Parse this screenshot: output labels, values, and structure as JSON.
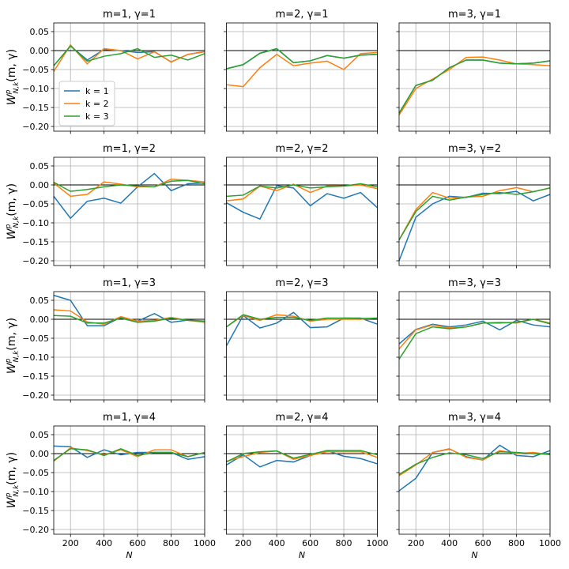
{
  "chart_data": [
    {
      "type": "line",
      "title": "m=1, γ=1",
      "ylabel": {
        "base": "W",
        "sup": "p",
        "sub": "N,k",
        "arg": "(m, γ)"
      },
      "legend": "lower left",
      "grid": true,
      "hline": 0,
      "x": [
        100,
        200,
        300,
        400,
        500,
        600,
        700,
        800,
        900,
        1000
      ],
      "xlim": [
        100,
        1000
      ],
      "xticks": [
        200,
        400,
        600,
        800,
        1000
      ],
      "ylim": [
        -0.2125,
        0.0729
      ],
      "yticks": [
        {
          "value": 0.05,
          "label": "0.05"
        },
        {
          "value": 0,
          "label": "0.00"
        },
        {
          "value": -0.05,
          "label": "−0.05"
        },
        {
          "value": -0.1,
          "label": "−0.10"
        },
        {
          "value": -0.15,
          "label": "−0.15"
        },
        {
          "value": -0.2,
          "label": "−0.20"
        }
      ],
      "series": [
        {
          "name": "k = 1",
          "color": "#1f77b4",
          "values": [
            -0.04,
            0.012,
            -0.025,
            0.003,
            0.0,
            -0.005,
            -0.003,
            -0.03,
            -0.01,
            -0.003
          ]
        },
        {
          "name": "k = 2",
          "color": "#ff7f0e",
          "values": [
            -0.055,
            0.015,
            -0.035,
            0.005,
            0.0,
            -0.022,
            -0.003,
            -0.03,
            -0.01,
            -0.003
          ]
        },
        {
          "name": "k = 3",
          "color": "#2ca02c",
          "values": [
            -0.04,
            0.012,
            -0.028,
            -0.015,
            -0.008,
            0.005,
            -0.018,
            -0.012,
            -0.025,
            -0.008
          ]
        }
      ]
    },
    {
      "type": "line",
      "title": "m=2, γ=1",
      "grid": true,
      "hline": 0,
      "x": [
        100,
        200,
        300,
        400,
        500,
        600,
        700,
        800,
        900,
        1000
      ],
      "xlim": [
        100,
        1000
      ],
      "xticks": [
        200,
        400,
        600,
        800,
        1000
      ],
      "ylim": [
        -0.2125,
        0.0729
      ],
      "yticks": [
        0.05,
        0,
        -0.05,
        -0.1,
        -0.15,
        -0.2
      ],
      "series": [
        {
          "color": "#1f77b4",
          "values": [
            -0.048,
            -0.037,
            -0.007,
            0.005,
            -0.032,
            -0.027,
            -0.013,
            -0.02,
            -0.012,
            -0.01
          ]
        },
        {
          "color": "#ff7f0e",
          "values": [
            -0.09,
            -0.095,
            -0.045,
            -0.01,
            -0.04,
            -0.033,
            -0.028,
            -0.05,
            -0.008,
            -0.005
          ]
        },
        {
          "color": "#2ca02c",
          "values": [
            -0.048,
            -0.037,
            -0.007,
            0.005,
            -0.032,
            -0.027,
            -0.013,
            -0.02,
            -0.012,
            -0.01
          ]
        }
      ]
    },
    {
      "type": "line",
      "title": "m=3, γ=1",
      "grid": true,
      "hline": 0,
      "x": [
        100,
        200,
        300,
        400,
        500,
        600,
        700,
        800,
        900,
        1000
      ],
      "xlim": [
        100,
        1000
      ],
      "xticks": [
        200,
        400,
        600,
        800,
        1000
      ],
      "ylim": [
        -0.2125,
        0.0729
      ],
      "yticks": [
        0.05,
        0,
        -0.05,
        -0.1,
        -0.15,
        -0.2
      ],
      "series": [
        {
          "color": "#1f77b4",
          "values": [
            -0.165,
            -0.092,
            -0.078,
            -0.045,
            -0.025,
            -0.025,
            -0.033,
            -0.035,
            -0.033,
            -0.027
          ]
        },
        {
          "color": "#ff7f0e",
          "values": [
            -0.17,
            -0.1,
            -0.075,
            -0.05,
            -0.018,
            -0.017,
            -0.025,
            -0.035,
            -0.037,
            -0.04
          ]
        },
        {
          "color": "#2ca02c",
          "values": [
            -0.165,
            -0.092,
            -0.078,
            -0.045,
            -0.025,
            -0.025,
            -0.033,
            -0.035,
            -0.033,
            -0.027
          ]
        }
      ]
    },
    {
      "type": "line",
      "title": "m=1, γ=2",
      "ylabel": {
        "base": "W",
        "sup": "p",
        "sub": "N,k",
        "arg": "(m, γ)"
      },
      "grid": true,
      "hline": 0,
      "x": [
        100,
        200,
        300,
        400,
        500,
        600,
        700,
        800,
        900,
        1000
      ],
      "xlim": [
        100,
        1000
      ],
      "xticks": [
        200,
        400,
        600,
        800,
        1000
      ],
      "ylim": [
        -0.2125,
        0.0729
      ],
      "yticks": [
        {
          "value": 0.05,
          "label": "0.05"
        },
        {
          "value": 0,
          "label": "0.00"
        },
        {
          "value": -0.05,
          "label": "−0.05"
        },
        {
          "value": -0.1,
          "label": "−0.10"
        },
        {
          "value": -0.15,
          "label": "−0.15"
        },
        {
          "value": -0.2,
          "label": "−0.20"
        }
      ],
      "series": [
        {
          "color": "#1f77b4",
          "values": [
            -0.03,
            -0.088,
            -0.043,
            -0.035,
            -0.048,
            -0.005,
            0.03,
            -0.015,
            0.003,
            0.005
          ]
        },
        {
          "color": "#ff7f0e",
          "values": [
            0.005,
            -0.03,
            -0.025,
            0.008,
            0.002,
            -0.005,
            -0.005,
            0.015,
            0.012,
            0.008
          ]
        },
        {
          "color": "#2ca02c",
          "values": [
            0.007,
            -0.017,
            -0.012,
            -0.005,
            0.0,
            -0.003,
            -0.005,
            0.01,
            0.012,
            0.003
          ]
        }
      ]
    },
    {
      "type": "line",
      "title": "m=2, γ=2",
      "grid": true,
      "hline": 0,
      "x": [
        100,
        200,
        300,
        400,
        500,
        600,
        700,
        800,
        900,
        1000
      ],
      "xlim": [
        100,
        1000
      ],
      "xticks": [
        200,
        400,
        600,
        800,
        1000
      ],
      "ylim": [
        -0.2125,
        0.0729
      ],
      "yticks": [
        0.05,
        0,
        -0.05,
        -0.1,
        -0.15,
        -0.2
      ],
      "series": [
        {
          "color": "#1f77b4",
          "values": [
            -0.047,
            -0.072,
            -0.09,
            -0.002,
            -0.008,
            -0.055,
            -0.023,
            -0.035,
            -0.02,
            -0.06
          ]
        },
        {
          "color": "#ff7f0e",
          "values": [
            -0.042,
            -0.037,
            -0.003,
            -0.015,
            0.002,
            -0.02,
            -0.003,
            -0.003,
            0.0,
            -0.01
          ]
        },
        {
          "color": "#2ca02c",
          "values": [
            -0.03,
            -0.027,
            -0.003,
            -0.008,
            0.0,
            -0.008,
            -0.005,
            -0.003,
            0.003,
            -0.005
          ]
        }
      ]
    },
    {
      "type": "line",
      "title": "m=3, γ=2",
      "grid": true,
      "hline": 0,
      "x": [
        100,
        200,
        300,
        400,
        500,
        600,
        700,
        800,
        900,
        1000
      ],
      "xlim": [
        100,
        1000
      ],
      "xticks": [
        200,
        400,
        600,
        800,
        1000
      ],
      "ylim": [
        -0.2125,
        0.0729
      ],
      "yticks": [
        0.05,
        0,
        -0.05,
        -0.1,
        -0.15,
        -0.2
      ],
      "series": [
        {
          "color": "#1f77b4",
          "values": [
            -0.2,
            -0.085,
            -0.05,
            -0.03,
            -0.033,
            -0.022,
            -0.023,
            -0.017,
            -0.042,
            -0.025
          ]
        },
        {
          "color": "#ff7f0e",
          "values": [
            -0.145,
            -0.065,
            -0.02,
            -0.035,
            -0.032,
            -0.03,
            -0.015,
            -0.007,
            -0.018,
            -0.008
          ]
        },
        {
          "color": "#2ca02c",
          "values": [
            -0.145,
            -0.07,
            -0.03,
            -0.04,
            -0.032,
            -0.025,
            -0.02,
            -0.025,
            -0.018,
            -0.008
          ]
        }
      ]
    },
    {
      "type": "line",
      "title": "m=1, γ=3",
      "ylabel": {
        "base": "W",
        "sup": "p",
        "sub": "N,k",
        "arg": "(m, γ)"
      },
      "grid": true,
      "hline": 0,
      "x": [
        100,
        200,
        300,
        400,
        500,
        600,
        700,
        800,
        900,
        1000
      ],
      "xlim": [
        100,
        1000
      ],
      "xticks": [
        200,
        400,
        600,
        800,
        1000
      ],
      "ylim": [
        -0.2125,
        0.0729
      ],
      "yticks": [
        {
          "value": 0.05,
          "label": "0.05"
        },
        {
          "value": 0,
          "label": "0.00"
        },
        {
          "value": -0.05,
          "label": "−0.05"
        },
        {
          "value": -0.1,
          "label": "−0.10"
        },
        {
          "value": -0.15,
          "label": "−0.15"
        },
        {
          "value": -0.2,
          "label": "−0.20"
        }
      ],
      "series": [
        {
          "color": "#1f77b4",
          "values": [
            0.063,
            0.05,
            -0.017,
            -0.017,
            0.005,
            -0.005,
            0.015,
            -0.008,
            -0.002,
            -0.005
          ]
        },
        {
          "color": "#ff7f0e",
          "values": [
            0.025,
            0.022,
            -0.007,
            -0.013,
            0.007,
            -0.005,
            -0.003,
            0.005,
            -0.003,
            -0.008
          ]
        },
        {
          "color": "#2ca02c",
          "values": [
            0.01,
            0.008,
            -0.01,
            -0.01,
            0.003,
            -0.008,
            -0.005,
            0.003,
            -0.003,
            -0.005
          ]
        }
      ]
    },
    {
      "type": "line",
      "title": "m=2, γ=3",
      "grid": true,
      "hline": 0,
      "x": [
        100,
        200,
        300,
        400,
        500,
        600,
        700,
        800,
        900,
        1000
      ],
      "xlim": [
        100,
        1000
      ],
      "xticks": [
        200,
        400,
        600,
        800,
        1000
      ],
      "ylim": [
        -0.2125,
        0.0729
      ],
      "yticks": [
        0.05,
        0,
        -0.05,
        -0.1,
        -0.15,
        -0.2
      ],
      "series": [
        {
          "color": "#1f77b4",
          "values": [
            -0.07,
            0.01,
            -0.023,
            -0.01,
            0.018,
            -0.022,
            -0.02,
            0.003,
            0.003,
            -0.013
          ]
        },
        {
          "color": "#ff7f0e",
          "values": [
            -0.02,
            0.01,
            -0.003,
            0.012,
            0.008,
            -0.005,
            0.0,
            0.0,
            0.0,
            0.003
          ]
        },
        {
          "color": "#2ca02c",
          "values": [
            -0.02,
            0.012,
            0.0,
            0.005,
            0.005,
            -0.003,
            0.003,
            0.003,
            0.002,
            0.003
          ]
        }
      ]
    },
    {
      "type": "line",
      "title": "m=3, γ=3",
      "grid": true,
      "hline": 0,
      "x": [
        100,
        200,
        300,
        400,
        500,
        600,
        700,
        800,
        900,
        1000
      ],
      "xlim": [
        100,
        1000
      ],
      "xticks": [
        200,
        400,
        600,
        800,
        1000
      ],
      "ylim": [
        -0.2125,
        0.0729
      ],
      "yticks": [
        0.05,
        0,
        -0.05,
        -0.1,
        -0.15,
        -0.2
      ],
      "series": [
        {
          "color": "#1f77b4",
          "values": [
            -0.065,
            -0.027,
            -0.013,
            -0.02,
            -0.015,
            -0.005,
            -0.028,
            -0.003,
            -0.015,
            -0.02
          ]
        },
        {
          "color": "#ff7f0e",
          "values": [
            -0.078,
            -0.028,
            -0.015,
            -0.023,
            -0.02,
            -0.01,
            -0.008,
            -0.01,
            0.0,
            -0.01
          ]
        },
        {
          "color": "#2ca02c",
          "values": [
            -0.105,
            -0.038,
            -0.02,
            -0.025,
            -0.02,
            -0.01,
            -0.01,
            -0.008,
            0.0,
            -0.012
          ]
        }
      ]
    },
    {
      "type": "line",
      "title": "m=1, γ=4",
      "ylabel": {
        "base": "W",
        "sup": "p",
        "sub": "N,k",
        "arg": "(m, γ)"
      },
      "xlabel": "N",
      "grid": true,
      "hline": 0,
      "x": [
        100,
        200,
        300,
        400,
        500,
        600,
        700,
        800,
        900,
        1000
      ],
      "xlim": [
        100,
        1000
      ],
      "xticks": [
        200,
        400,
        600,
        800,
        1000
      ],
      "ylim": [
        -0.2125,
        0.0729
      ],
      "yticks": [
        {
          "value": 0.05,
          "label": "0.05"
        },
        {
          "value": 0,
          "label": "0.00"
        },
        {
          "value": -0.05,
          "label": "−0.05"
        },
        {
          "value": -0.1,
          "label": "−0.10"
        },
        {
          "value": -0.15,
          "label": "−0.15"
        },
        {
          "value": -0.2,
          "label": "−0.20"
        }
      ],
      "series": [
        {
          "color": "#1f77b4",
          "values": [
            0.02,
            0.018,
            -0.01,
            0.01,
            -0.003,
            0.003,
            0.003,
            0.003,
            -0.015,
            -0.008
          ]
        },
        {
          "color": "#ff7f0e",
          "values": [
            -0.02,
            0.015,
            0.008,
            -0.003,
            0.01,
            -0.008,
            0.01,
            0.01,
            -0.008,
            0.003
          ]
        },
        {
          "color": "#2ca02c",
          "values": [
            -0.018,
            0.013,
            0.01,
            -0.005,
            0.013,
            -0.005,
            0.003,
            0.003,
            -0.008,
            0.003
          ]
        }
      ]
    },
    {
      "type": "line",
      "title": "m=2, γ=4",
      "xlabel": "N",
      "grid": true,
      "hline": 0,
      "x": [
        100,
        200,
        300,
        400,
        500,
        600,
        700,
        800,
        900,
        1000
      ],
      "xlim": [
        100,
        1000
      ],
      "xticks": [
        200,
        400,
        600,
        800,
        1000
      ],
      "ylim": [
        -0.2125,
        0.0729
      ],
      "yticks": [
        0.05,
        0,
        -0.05,
        -0.1,
        -0.15,
        -0.2
      ],
      "series": [
        {
          "color": "#1f77b4",
          "values": [
            -0.03,
            -0.003,
            -0.035,
            -0.018,
            -0.022,
            -0.005,
            0.008,
            -0.007,
            -0.013,
            -0.027
          ]
        },
        {
          "color": "#ff7f0e",
          "values": [
            -0.02,
            -0.008,
            0.003,
            0.007,
            -0.015,
            -0.005,
            0.005,
            0.005,
            0.005,
            -0.01
          ]
        },
        {
          "color": "#2ca02c",
          "values": [
            -0.022,
            0.0,
            0.005,
            0.007,
            -0.012,
            -0.002,
            0.008,
            0.008,
            0.008,
            -0.003
          ]
        }
      ]
    },
    {
      "type": "line",
      "title": "m=3, γ=4",
      "xlabel": "N",
      "grid": true,
      "hline": 0,
      "x": [
        100,
        200,
        300,
        400,
        500,
        600,
        700,
        800,
        900,
        1000
      ],
      "xlim": [
        100,
        1000
      ],
      "xticks": [
        200,
        400,
        600,
        800,
        1000
      ],
      "ylim": [
        -0.2125,
        0.0729
      ],
      "yticks": [
        0.05,
        0,
        -0.05,
        -0.1,
        -0.15,
        -0.2
      ],
      "series": [
        {
          "color": "#1f77b4",
          "values": [
            -0.098,
            -0.065,
            0.003,
            0.012,
            -0.008,
            -0.017,
            0.022,
            -0.005,
            -0.008,
            0.008
          ]
        },
        {
          "color": "#ff7f0e",
          "values": [
            -0.058,
            -0.03,
            0.003,
            0.013,
            -0.01,
            -0.017,
            0.008,
            0.0,
            0.003,
            -0.003
          ]
        },
        {
          "color": "#2ca02c",
          "values": [
            -0.055,
            -0.028,
            -0.01,
            0.002,
            -0.003,
            -0.013,
            0.005,
            0.003,
            0.0,
            -0.002
          ]
        }
      ]
    }
  ]
}
